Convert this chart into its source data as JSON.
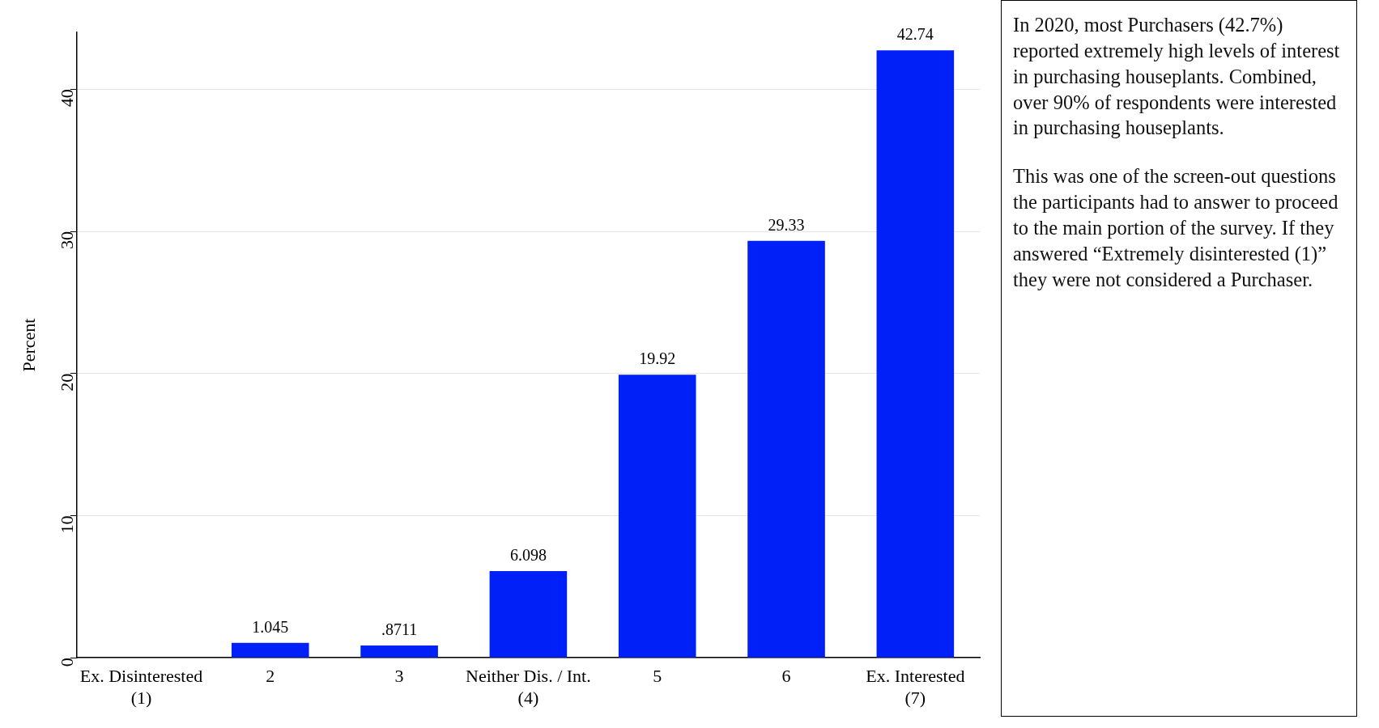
{
  "chart_data": {
    "type": "bar",
    "ylabel": "Percent",
    "categories": [
      "Ex. Disinterested\n(1)",
      "2",
      "3",
      "Neither Dis. / Int.\n(4)",
      "5",
      "6",
      "Ex. Interested\n(7)"
    ],
    "values": [
      null,
      1.045,
      0.8711,
      6.098,
      19.92,
      29.33,
      42.74
    ],
    "value_labels": [
      null,
      "1.045",
      ".8711",
      "6.098",
      "19.92",
      "29.33",
      "42.74"
    ],
    "color": "#0020f8",
    "ylim": [
      0,
      44
    ],
    "yticks": [
      0,
      10,
      20,
      30,
      40
    ],
    "grid": "y",
    "annotations": [
      "In 2020, most Purchasers (42.7%) reported extremely high levels of interest in purchasing houseplants. Combined, over 90% of respondents were interested in purchasing houseplants.",
      "This was one of the screen-out questions the participants had to answer to proceed to the main portion of the survey. If they answered “Extremely disinterested (1)” they were not considered a Purchaser."
    ]
  }
}
